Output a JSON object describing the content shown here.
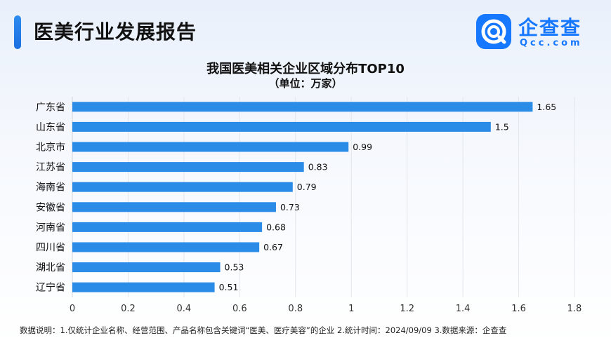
{
  "header": {
    "title": "医美行业发展报告"
  },
  "logo": {
    "name_cn": "企查查",
    "name_en": "Qcc.com",
    "icon": "qcc-logo-icon",
    "brand_color": "#1677ff"
  },
  "chart_data": {
    "type": "bar",
    "orientation": "horizontal",
    "title": "我国医美相关企业区域分布TOP10",
    "subtitle": "（单位：万家）",
    "categories": [
      "广东省",
      "山东省",
      "北京市",
      "江苏省",
      "海南省",
      "安徽省",
      "河南省",
      "四川省",
      "湖北省",
      "辽宁省"
    ],
    "values": [
      1.65,
      1.5,
      0.99,
      0.83,
      0.79,
      0.73,
      0.68,
      0.67,
      0.53,
      0.51
    ],
    "value_labels": [
      "1.65",
      "1.5",
      "0.99",
      "0.83",
      "0.79",
      "0.73",
      "0.68",
      "0.67",
      "0.53",
      "0.51"
    ],
    "xlim": [
      0,
      1.8
    ],
    "xticks": [
      0,
      0.2,
      0.4,
      0.6,
      0.8,
      1,
      1.2,
      1.4,
      1.6,
      1.8
    ],
    "xtick_labels": [
      "0",
      "0.2",
      "0.4",
      "0.6",
      "0.8",
      "1",
      "1.2",
      "1.4",
      "1.6",
      "1.8"
    ],
    "grid": "vertical",
    "bar_color": "#2b8ce8"
  },
  "footnote": "数据说明：1.仅统计企业名称、经营范围、产品名称包含关键词“医美、医疗美容”的企业  2.统计时间：2024/09/09  3.数据来源：企查查"
}
